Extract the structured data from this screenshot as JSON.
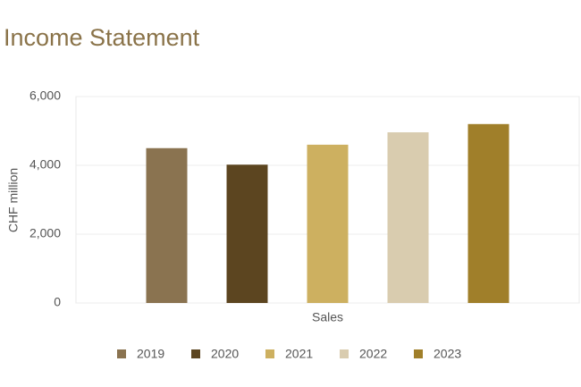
{
  "chart_data": {
    "type": "bar",
    "title": "Income Statement",
    "y_label": "CHF million",
    "categories": [
      "Sales"
    ],
    "series": [
      {
        "name": "2019",
        "color": "#8a7350",
        "values": [
          4500
        ]
      },
      {
        "name": "2020",
        "color": "#5c4520",
        "values": [
          4020
        ]
      },
      {
        "name": "2021",
        "color": "#cdb060",
        "values": [
          4600
        ]
      },
      {
        "name": "2022",
        "color": "#d9ccaf",
        "values": [
          4960
        ]
      },
      {
        "name": "2023",
        "color": "#a07f2a",
        "values": [
          5200
        ]
      }
    ],
    "ylim": [
      0,
      6000
    ],
    "yticks": [
      0,
      {
        "value": 2000,
        "label": "2,000"
      },
      {
        "value": 4000,
        "label": "4,000"
      },
      {
        "value": 6000,
        "label": "6,000"
      }
    ],
    "grid": true,
    "legend": "bottom"
  }
}
